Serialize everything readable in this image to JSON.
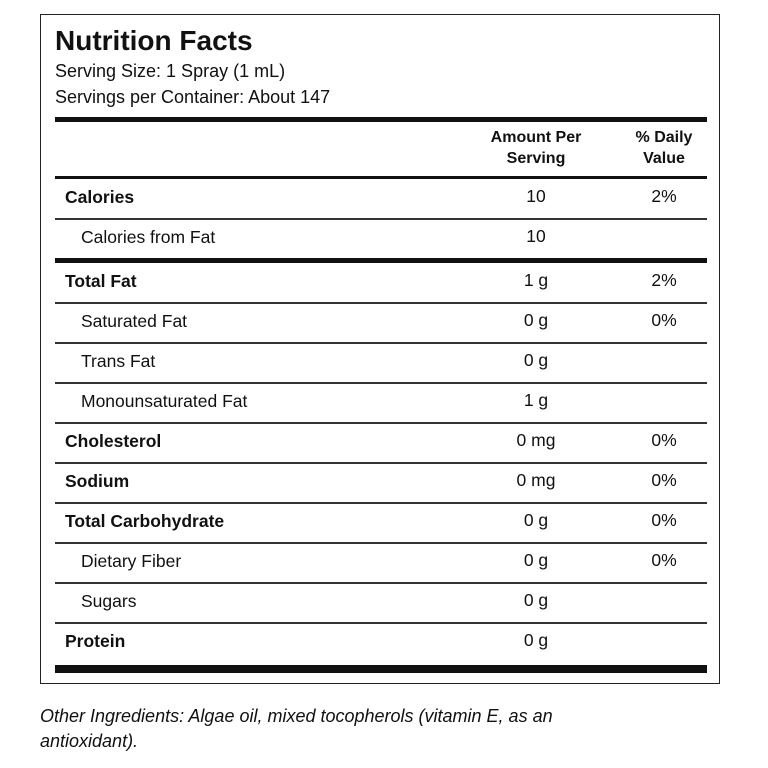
{
  "header": {
    "title": "Nutrition Facts",
    "serving_size": "Serving Size: 1 Spray (1 mL)",
    "servings_per_container": "Servings per Container: About 147"
  },
  "table": {
    "columns": [
      "Amount Per Serving",
      "% Daily Value"
    ],
    "sections": [
      [
        {
          "name": "Calories",
          "amount": "10",
          "dv": "2%"
        },
        {
          "name": "Calories from Fat",
          "amount": "10",
          "sub": true
        }
      ],
      [
        {
          "name": "Total Fat",
          "amount": "1 g",
          "dv": "2%"
        },
        {
          "name": "Saturated Fat",
          "amount": "0 g",
          "dv": "0%",
          "sub": true
        },
        {
          "name": "Trans Fat",
          "amount": "0 g",
          "sub": true
        },
        {
          "name": "Monounsaturated Fat",
          "amount": "1 g",
          "sub": true
        },
        {
          "name": "Cholesterol",
          "amount": "0 mg",
          "dv": "0%"
        },
        {
          "name": "Sodium",
          "amount": "0 mg",
          "dv": "0%"
        },
        {
          "name": "Total Carbohydrate",
          "amount": "0 g",
          "dv": "0%"
        },
        {
          "name": "Dietary Fiber",
          "amount": "0 g",
          "dv": "0%",
          "sub": true
        },
        {
          "name": "Sugars",
          "amount": "0 g",
          "sub": true
        },
        {
          "name": "Protein",
          "amount": "0 g"
        }
      ]
    ]
  },
  "footer": "Other Ingredients: Algae oil, mixed tocopherols (vitamin E, as an antioxidant)."
}
